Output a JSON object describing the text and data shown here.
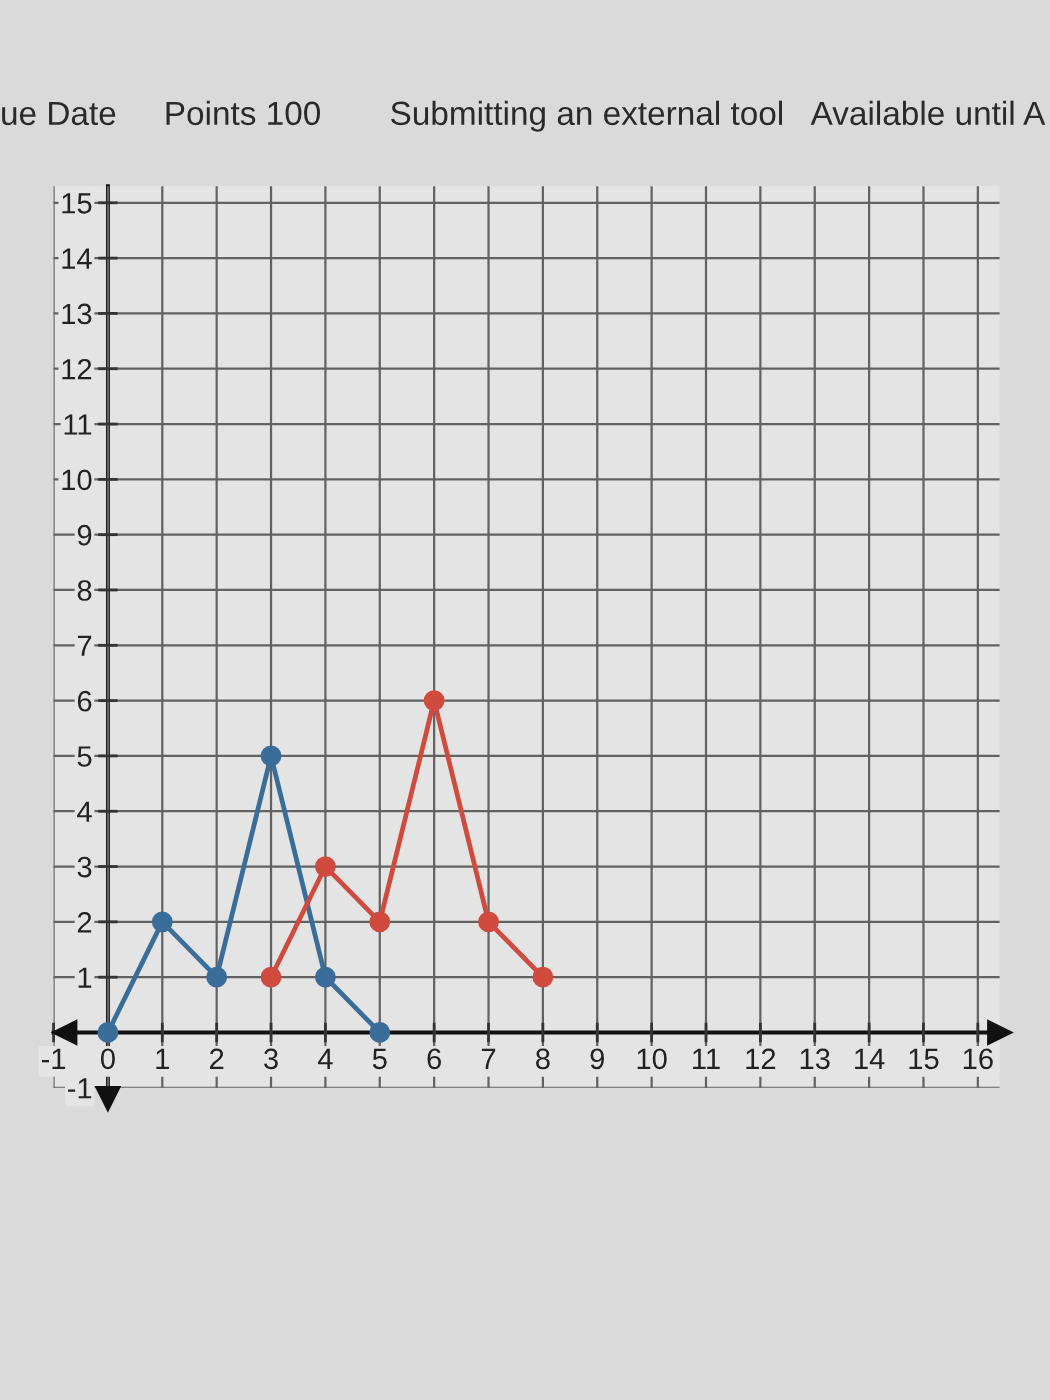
{
  "chart_data": {
    "type": "line",
    "annotations": [
      "ue Date",
      "Points 100",
      "Submitting an external tool",
      "Available until A"
    ],
    "series": [
      {
        "color": "#3a6d9a",
        "x": [
          0,
          1,
          2,
          3,
          4,
          5
        ],
        "values": [
          0,
          2,
          1,
          5,
          1,
          0
        ]
      },
      {
        "color": "#d04a3e",
        "x": [
          3,
          4,
          5,
          6,
          7,
          8
        ],
        "values": [
          1,
          3,
          2,
          6,
          2,
          1
        ]
      }
    ],
    "xlim": [
      -1,
      16.4
    ],
    "ylim": [
      -1,
      15.3
    ],
    "xticks": [
      -1,
      0,
      1,
      2,
      3,
      4,
      5,
      6,
      7,
      8,
      9,
      10,
      11,
      12,
      13,
      14,
      15,
      16
    ],
    "yticks": [
      -1,
      1,
      2,
      3,
      4,
      5,
      6,
      7,
      8,
      9,
      10,
      11,
      12,
      13,
      14,
      15
    ],
    "grid": true,
    "marker": "circle",
    "line_style": "solid"
  }
}
